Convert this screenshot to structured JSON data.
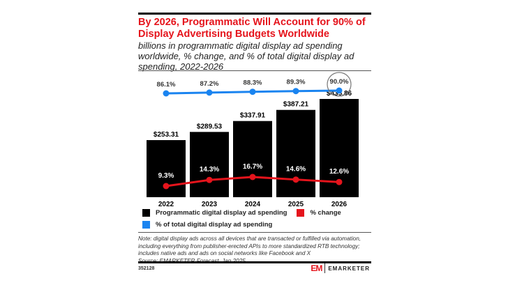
{
  "title": "By 2026, Programmatic Will Account for 90% of Display Advertising Budgets Worldwide",
  "subtitle": "billions in programmatic digital display ad spending worldwide, % change, and % of total digital display ad spending, 2022-2026",
  "colors": {
    "bars": "#000000",
    "change": "#e5141c",
    "share": "#1a84f0",
    "title": "#e5141c"
  },
  "chart_data": {
    "type": "bar",
    "categories": [
      "2022",
      "2023",
      "2024",
      "2025",
      "2026"
    ],
    "series": [
      {
        "name": "Programmatic digital display ad spending",
        "type": "bar",
        "values": [
          253.31,
          289.53,
          337.91,
          387.21,
          435.86
        ],
        "labels": [
          "$253.31",
          "$289.53",
          "$337.91",
          "$387.21",
          "$435.86"
        ]
      },
      {
        "name": "% change",
        "type": "line",
        "values": [
          9.3,
          14.3,
          16.7,
          14.6,
          12.6
        ],
        "labels": [
          "9.3%",
          "14.3%",
          "16.7%",
          "14.6%",
          "12.6%"
        ]
      },
      {
        "name": "% of total digital display ad spending",
        "type": "line",
        "values": [
          86.1,
          87.2,
          88.3,
          89.3,
          90.0
        ],
        "labels": [
          "86.1%",
          "87.2%",
          "88.3%",
          "89.3%",
          "90.0%"
        ]
      }
    ],
    "highlight": "2026 % of total (circled)"
  },
  "legend": [
    "Programmatic digital display ad spending",
    "% change",
    "% of total digital display ad spending"
  ],
  "note": "Note: digital display ads across all devices that are transacted or fulfilled via automation, including everything from publisher-erected APIs to more standardized RTB technology; includes native ads and ads on social networks like Facebook and X",
  "source": "Source: EMARKETER Forecast, Jan 2025",
  "chart_id": "352128",
  "logo": {
    "mark": "EM",
    "text": "EMARKETER"
  }
}
